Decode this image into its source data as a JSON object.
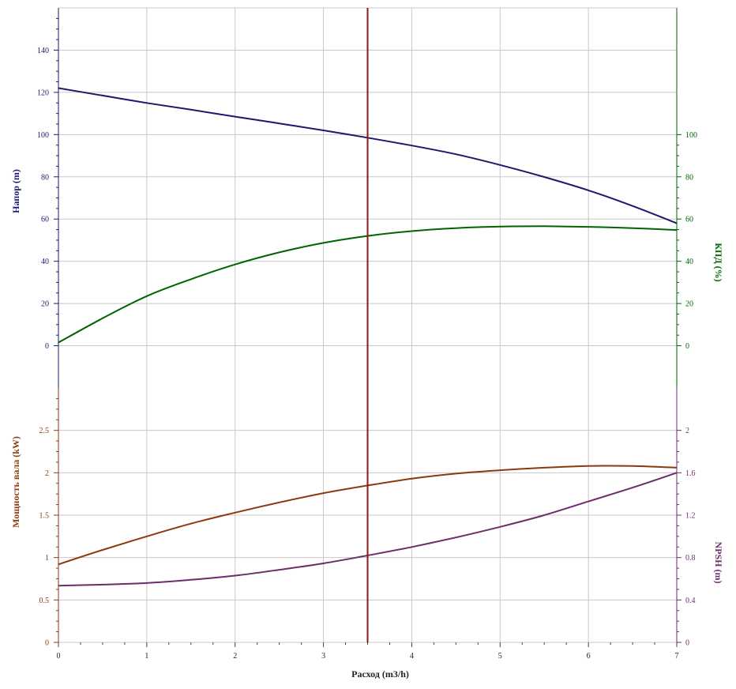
{
  "chart_data": {
    "type": "line",
    "x_axis": {
      "label": "Расход (m3/h)",
      "ticks": [
        "0",
        "1",
        "2",
        "3",
        "4",
        "5",
        "6",
        "7"
      ],
      "range": [
        0,
        7
      ]
    },
    "duty_point": {
      "x": 3.5,
      "color": "#8b1a1a"
    },
    "panels": [
      {
        "id": "top",
        "left_axis": {
          "label": "Напор (m)",
          "color": "#1a1a6e",
          "range": [
            -20,
            160
          ],
          "ticks": [
            "0",
            "20",
            "40",
            "60",
            "80",
            "100",
            "120",
            "140"
          ],
          "tick_values": [
            0,
            20,
            40,
            60,
            80,
            100,
            120,
            140
          ]
        },
        "right_axis": {
          "label": "КПД (%)",
          "color": "#006400",
          "range": [
            -20,
            160
          ],
          "ticks": [
            "0",
            "20",
            "40",
            "60",
            "80",
            "100"
          ],
          "tick_values": [
            0,
            20,
            40,
            60,
            80,
            100
          ]
        },
        "series": [
          {
            "axis": "left",
            "color": "#1a1a6e",
            "x": [
              0,
              0.5,
              1,
              1.5,
              2,
              2.5,
              3,
              3.5,
              4,
              4.5,
              5,
              5.5,
              6,
              6.5,
              7
            ],
            "y": [
              122,
              118.5,
              115,
              111.8,
              108.5,
              105.3,
              102,
              98.5,
              94.8,
              90.7,
              85.6,
              79.9,
              73.6,
              66.2,
              58
            ]
          },
          {
            "axis": "right",
            "color": "#006400",
            "x": [
              0,
              0.5,
              1,
              1.5,
              2,
              2.5,
              3,
              3.5,
              4,
              4.5,
              5,
              5.5,
              6,
              6.5,
              7
            ],
            "y": [
              1.5,
              13,
              23.5,
              31.5,
              38.5,
              44.2,
              48.7,
              52,
              54.3,
              55.7,
              56.4,
              56.6,
              56.3,
              55.7,
              54.8
            ]
          }
        ]
      },
      {
        "id": "bottom",
        "left_axis": {
          "label": "Мощность вала (kW)",
          "color": "#8b3a0f",
          "range": [
            0,
            3
          ],
          "ticks": [
            "0",
            "0.5",
            "1",
            "1.5",
            "2",
            "2.5"
          ],
          "tick_values": [
            0,
            0.5,
            1,
            1.5,
            2,
            2.5
          ]
        },
        "right_axis": {
          "label": "NPSH (m)",
          "color": "#6b2d6b",
          "range": [
            0,
            2.4
          ],
          "ticks": [
            "0",
            "0.4",
            "0.8",
            "1.2",
            "1.6",
            "2"
          ],
          "tick_values": [
            0,
            0.4,
            0.8,
            1.2,
            1.6,
            2
          ]
        },
        "series": [
          {
            "axis": "left",
            "color": "#8b3a0f",
            "x": [
              0,
              0.5,
              1,
              1.5,
              2,
              2.5,
              3,
              3.5,
              4,
              4.5,
              5,
              5.5,
              6,
              6.5,
              7
            ],
            "y": [
              0.92,
              1.09,
              1.25,
              1.4,
              1.53,
              1.65,
              1.76,
              1.85,
              1.93,
              1.99,
              2.03,
              2.06,
              2.08,
              2.08,
              2.06
            ]
          },
          {
            "axis": "right",
            "color": "#6b2d6b",
            "x": [
              0,
              0.5,
              1,
              1.5,
              2,
              2.5,
              3,
              3.5,
              4,
              4.5,
              5,
              5.5,
              6,
              6.5,
              7
            ],
            "y": [
              0.535,
              0.545,
              0.56,
              0.59,
              0.63,
              0.685,
              0.745,
              0.82,
              0.9,
              0.99,
              1.09,
              1.2,
              1.33,
              1.46,
              1.6
            ]
          }
        ]
      }
    ]
  }
}
